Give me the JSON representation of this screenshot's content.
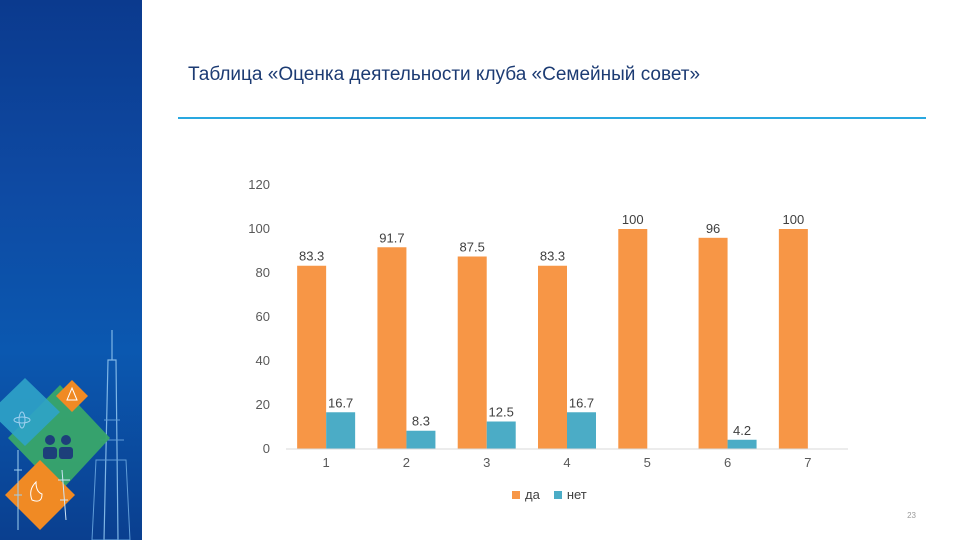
{
  "slide": {
    "title": "Таблица «Оценка деятельности клуба «Семейный совет»",
    "page_number": "23"
  },
  "colors": {
    "band": "#0e4aa3",
    "rule": "#29a8e0",
    "series_da": "#f79646",
    "series_net": "#4bacc6"
  },
  "decor": {
    "icons": [
      "warning-icon",
      "family-icon",
      "flame-icon",
      "tower-icon",
      "atom-icon"
    ]
  },
  "chart_data": {
    "type": "bar",
    "categories": [
      "1",
      "2",
      "3",
      "4",
      "5",
      "6",
      "7"
    ],
    "series": [
      {
        "name": "да",
        "values": [
          83.3,
          91.7,
          87.5,
          83.3,
          100,
          96,
          100
        ],
        "color": "#f79646"
      },
      {
        "name": "нет",
        "values": [
          16.7,
          8.3,
          12.5,
          16.7,
          null,
          4.2,
          null
        ],
        "color": "#4bacc6"
      }
    ],
    "y_ticks": [
      "0",
      "20",
      "40",
      "60",
      "80",
      "100",
      "120"
    ],
    "ylim": [
      0,
      120
    ],
    "grid": false,
    "legend_position": "bottom",
    "data_labels": true
  }
}
